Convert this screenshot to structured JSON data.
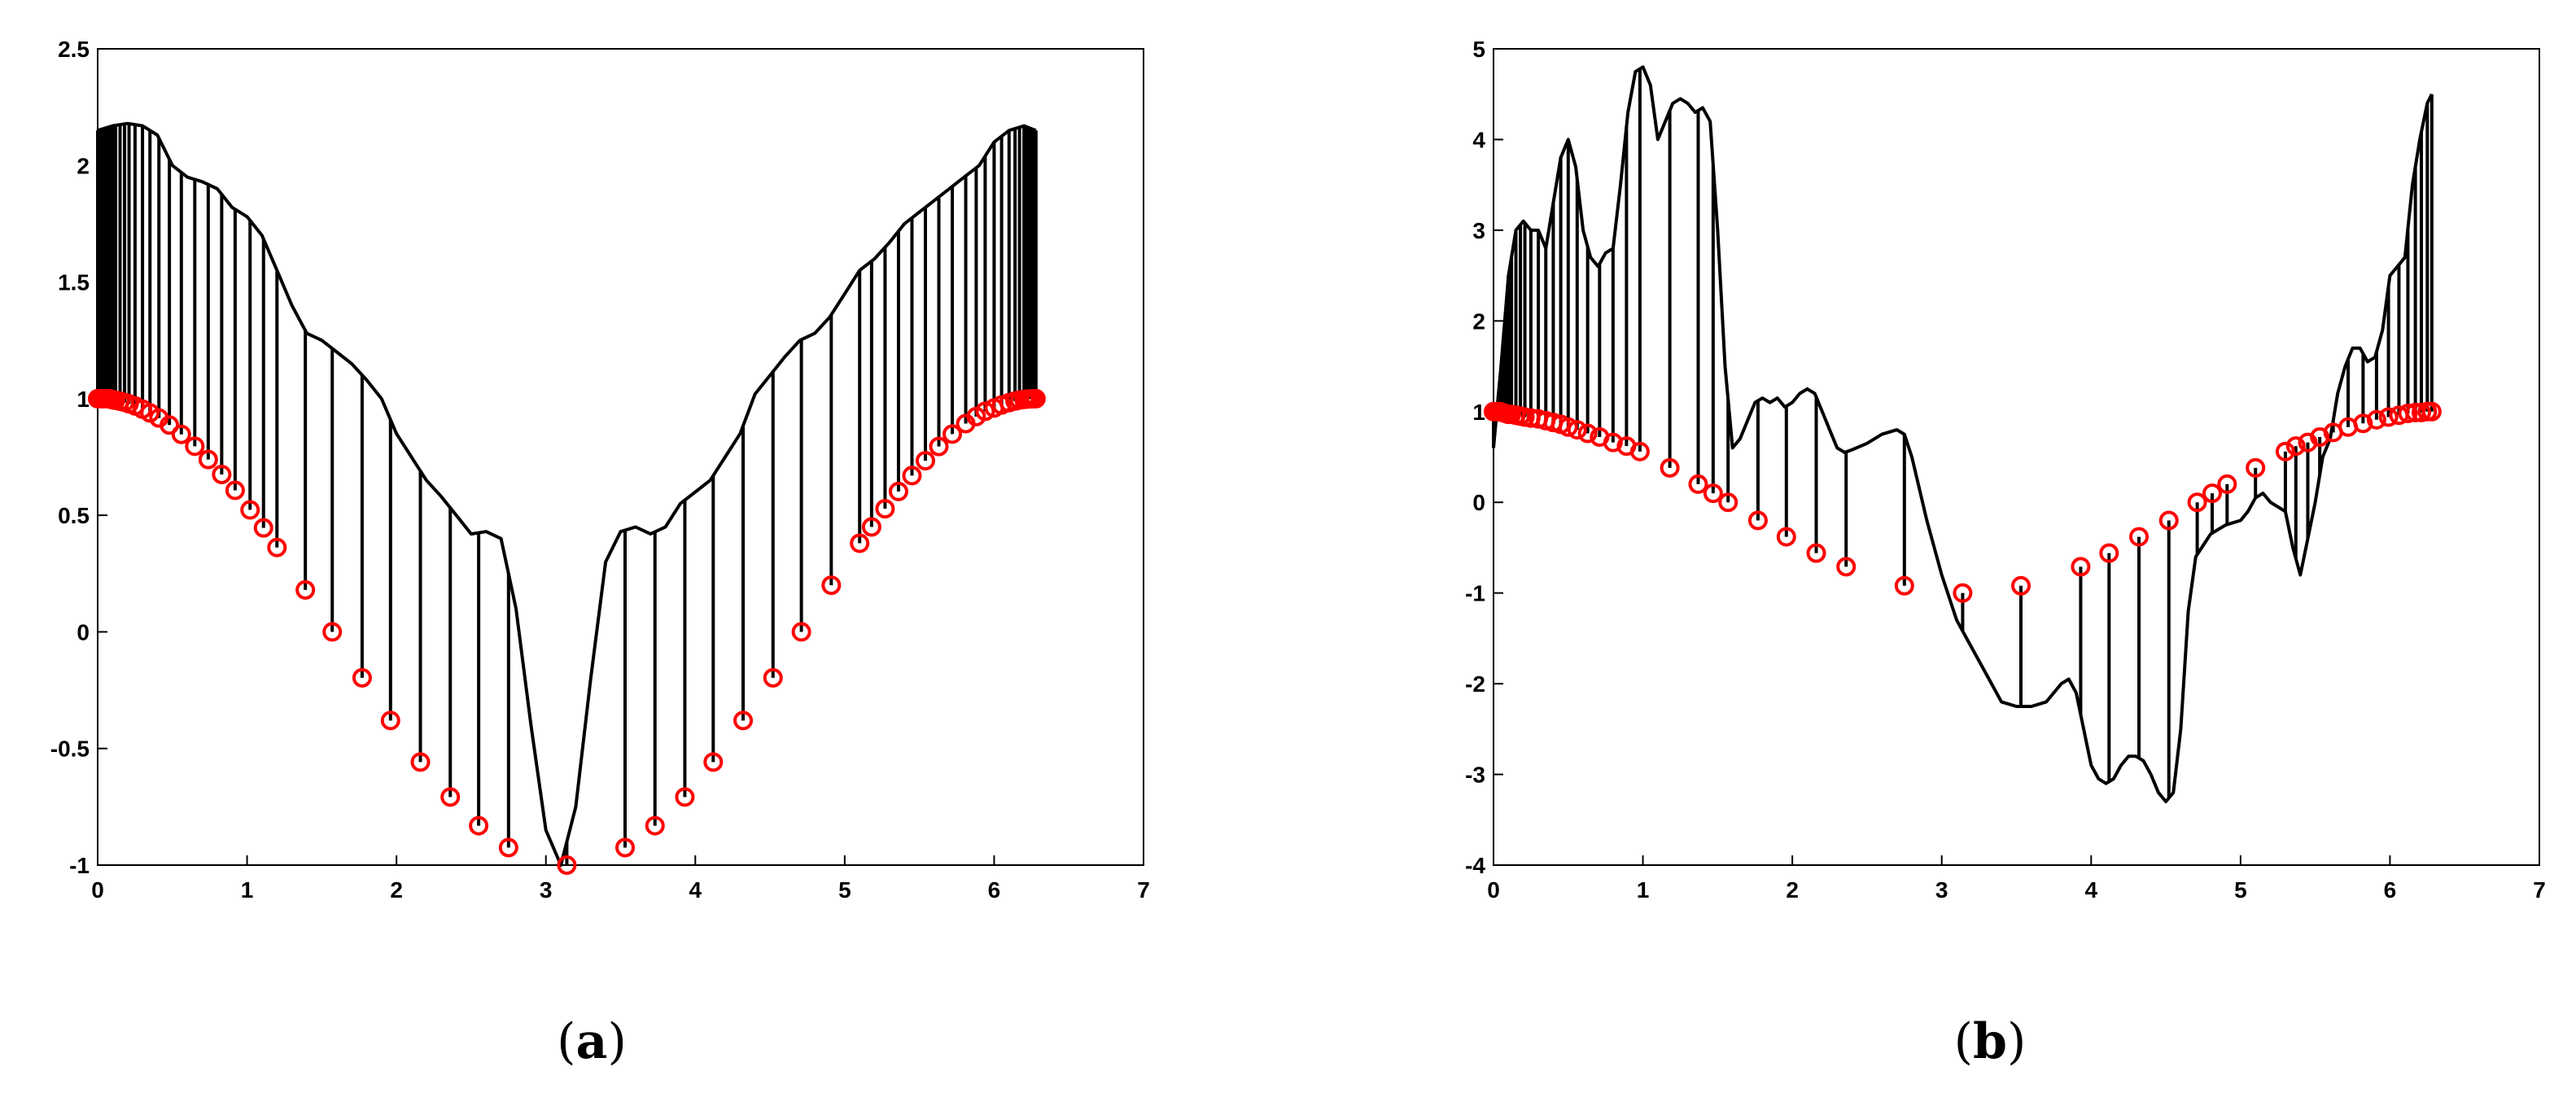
{
  "chart_data": [
    {
      "type": "line",
      "caption": "a",
      "xlim": [
        0,
        7
      ],
      "ylim": [
        -1,
        2.5
      ],
      "xticks": [
        0,
        1,
        2,
        3,
        4,
        5,
        6,
        7
      ],
      "yticks": [
        -1,
        -0.5,
        0,
        0.5,
        1,
        1.5,
        2,
        2.5
      ],
      "curve": {
        "x": [
          0,
          0.1,
          0.2,
          0.3,
          0.4,
          0.5,
          0.6,
          0.7,
          0.8,
          0.9,
          1.0,
          1.1,
          1.2,
          1.3,
          1.4,
          1.5,
          1.6,
          1.7,
          1.8,
          1.9,
          2.0,
          2.1,
          2.2,
          2.3,
          2.4,
          2.5,
          2.6,
          2.7,
          2.8,
          2.9,
          3.0,
          3.1,
          3.2,
          3.3,
          3.4,
          3.5,
          3.6,
          3.7,
          3.8,
          3.9,
          4.0,
          4.1,
          4.2,
          4.3,
          4.4,
          4.5,
          4.6,
          4.7,
          4.8,
          4.9,
          5.0,
          5.1,
          5.2,
          5.3,
          5.4,
          5.5,
          5.6,
          5.7,
          5.8,
          5.9,
          6.0,
          6.1,
          6.2,
          6.28
        ],
        "y": [
          2.15,
          2.17,
          2.18,
          2.17,
          2.13,
          2.0,
          1.95,
          1.93,
          1.9,
          1.82,
          1.78,
          1.7,
          1.55,
          1.4,
          1.28,
          1.25,
          1.2,
          1.15,
          1.08,
          1.0,
          0.85,
          0.75,
          0.65,
          0.58,
          0.5,
          0.42,
          0.43,
          0.4,
          0.1,
          -0.4,
          -0.85,
          -1.0,
          -0.75,
          -0.2,
          0.3,
          0.43,
          0.45,
          0.42,
          0.45,
          0.55,
          0.6,
          0.65,
          0.75,
          0.85,
          1.02,
          1.1,
          1.18,
          1.25,
          1.28,
          1.35,
          1.45,
          1.55,
          1.6,
          1.67,
          1.75,
          1.8,
          1.85,
          1.9,
          1.95,
          2.0,
          2.1,
          2.15,
          2.17,
          2.15
        ]
      },
      "samples_x": [
        0,
        0.02,
        0.04,
        0.06,
        0.08,
        0.1,
        0.12,
        0.15,
        0.18,
        0.21,
        0.25,
        0.3,
        0.35,
        0.41,
        0.48,
        0.56,
        0.65,
        0.74,
        0.83,
        0.92,
        1.02,
        1.11,
        1.2,
        1.39,
        1.57,
        1.77,
        1.96,
        2.16,
        2.36,
        2.55,
        2.75,
        3.14,
        3.53,
        3.73,
        3.93,
        4.12,
        4.32,
        4.52,
        4.71,
        4.91,
        5.1,
        5.18,
        5.27,
        5.36,
        5.45,
        5.54,
        5.63,
        5.72,
        5.81,
        5.88,
        5.94,
        6.0,
        6.05,
        6.1,
        6.14,
        6.17,
        6.2,
        6.22,
        6.24,
        6.26,
        6.28
      ],
      "samples_y": [
        1.0,
        1.0,
        1.0,
        1.0,
        1.0,
        0.995,
        0.993,
        0.989,
        0.984,
        0.978,
        0.969,
        0.955,
        0.939,
        0.917,
        0.887,
        0.847,
        0.796,
        0.739,
        0.675,
        0.607,
        0.523,
        0.446,
        0.362,
        0.18,
        0.0,
        -0.197,
        -0.38,
        -0.558,
        -0.708,
        -0.831,
        -0.925,
        -1.0,
        -0.925,
        -0.831,
        -0.708,
        -0.558,
        -0.38,
        -0.197,
        0.0,
        0.2,
        0.38,
        0.45,
        0.528,
        0.602,
        0.67,
        0.734,
        0.795,
        0.848,
        0.893,
        0.923,
        0.946,
        0.96,
        0.973,
        0.983,
        0.99,
        0.994,
        0.997,
        0.998,
        0.999,
        1.0,
        1.0
      ]
    },
    {
      "type": "line",
      "caption": "b",
      "xlim": [
        0,
        7
      ],
      "ylim": [
        -4,
        5
      ],
      "xticks": [
        0,
        1,
        2,
        3,
        4,
        5,
        6,
        7
      ],
      "yticks": [
        -4,
        -3,
        -2,
        -1,
        0,
        1,
        2,
        3,
        4,
        5
      ],
      "curve": {
        "x": [
          0,
          0.05,
          0.1,
          0.15,
          0.2,
          0.25,
          0.3,
          0.35,
          0.4,
          0.45,
          0.5,
          0.55,
          0.6,
          0.65,
          0.7,
          0.75,
          0.8,
          0.85,
          0.9,
          0.95,
          1.0,
          1.05,
          1.1,
          1.15,
          1.2,
          1.25,
          1.3,
          1.35,
          1.4,
          1.45,
          1.5,
          1.55,
          1.6,
          1.65,
          1.7,
          1.75,
          1.8,
          1.85,
          1.9,
          1.95,
          2.0,
          2.05,
          2.1,
          2.15,
          2.2,
          2.25,
          2.3,
          2.35,
          2.4,
          2.5,
          2.6,
          2.7,
          2.75,
          2.8,
          2.9,
          3.0,
          3.1,
          3.2,
          3.3,
          3.4,
          3.5,
          3.6,
          3.7,
          3.8,
          3.85,
          3.9,
          3.95,
          4.0,
          4.05,
          4.1,
          4.15,
          4.2,
          4.25,
          4.3,
          4.35,
          4.4,
          4.45,
          4.5,
          4.55,
          4.6,
          4.65,
          4.7,
          4.8,
          4.9,
          5.0,
          5.05,
          5.1,
          5.15,
          5.2,
          5.25,
          5.3,
          5.35,
          5.4,
          5.45,
          5.5,
          5.55,
          5.6,
          5.65,
          5.7,
          5.75,
          5.8,
          5.85,
          5.9,
          5.95,
          6.0,
          6.05,
          6.1,
          6.15,
          6.2,
          6.25,
          6.28
        ],
        "y": [
          0.6,
          1.5,
          2.5,
          3.0,
          3.1,
          3.0,
          3.0,
          2.8,
          3.3,
          3.8,
          4.0,
          3.7,
          3.0,
          2.7,
          2.6,
          2.75,
          2.8,
          3.5,
          4.3,
          4.75,
          4.8,
          4.6,
          4.0,
          4.2,
          4.4,
          4.45,
          4.4,
          4.3,
          4.35,
          4.2,
          3.0,
          1.5,
          0.6,
          0.7,
          0.9,
          1.1,
          1.15,
          1.1,
          1.15,
          1.05,
          1.1,
          1.2,
          1.25,
          1.2,
          1.0,
          0.8,
          0.6,
          0.55,
          0.58,
          0.65,
          0.75,
          0.8,
          0.75,
          0.5,
          -0.2,
          -0.8,
          -1.3,
          -1.6,
          -1.9,
          -2.2,
          -2.25,
          -2.25,
          -2.2,
          -2.0,
          -1.95,
          -2.1,
          -2.5,
          -2.9,
          -3.05,
          -3.1,
          -3.05,
          -2.9,
          -2.8,
          -2.8,
          -2.85,
          -3.0,
          -3.2,
          -3.3,
          -3.2,
          -2.5,
          -1.2,
          -0.6,
          -0.35,
          -0.25,
          -0.2,
          -0.1,
          0.05,
          0.1,
          0.0,
          -0.05,
          -0.1,
          -0.5,
          -0.8,
          -0.4,
          0.0,
          0.5,
          0.7,
          1.2,
          1.5,
          1.7,
          1.7,
          1.55,
          1.6,
          1.9,
          2.5,
          2.6,
          2.7,
          3.5,
          4.0,
          4.4,
          4.5
        ]
      },
      "samples_x": [
        0,
        0.02,
        0.04,
        0.06,
        0.08,
        0.1,
        0.12,
        0.15,
        0.18,
        0.21,
        0.25,
        0.3,
        0.35,
        0.4,
        0.45,
        0.5,
        0.56,
        0.63,
        0.71,
        0.8,
        0.89,
        0.98,
        1.18,
        1.37,
        1.47,
        1.57,
        1.77,
        1.96,
        2.16,
        2.36,
        2.75,
        3.14,
        3.53,
        3.93,
        4.12,
        4.32,
        4.52,
        4.71,
        4.81,
        4.91,
        5.1,
        5.3,
        5.37,
        5.45,
        5.53,
        5.62,
        5.72,
        5.82,
        5.91,
        5.99,
        6.06,
        6.12,
        6.17,
        6.21,
        6.25,
        6.28
      ],
      "samples_y": [
        1.0,
        1.0,
        1.0,
        0.99,
        0.98,
        0.97,
        0.97,
        0.96,
        0.95,
        0.94,
        0.93,
        0.92,
        0.9,
        0.88,
        0.86,
        0.83,
        0.8,
        0.76,
        0.72,
        0.66,
        0.62,
        0.56,
        0.38,
        0.2,
        0.1,
        0.0,
        -0.2,
        -0.38,
        -0.56,
        -0.71,
        -0.92,
        -1.0,
        -0.92,
        -0.71,
        -0.56,
        -0.38,
        -0.2,
        0.0,
        0.1,
        0.2,
        0.38,
        0.56,
        0.62,
        0.66,
        0.72,
        0.77,
        0.83,
        0.87,
        0.91,
        0.94,
        0.96,
        0.98,
        0.99,
        0.99,
        1.0,
        1.0
      ]
    }
  ],
  "colors": {
    "curve": "#000000",
    "stem": "#000000",
    "marker": "#ff0000",
    "axes": "#000000"
  }
}
